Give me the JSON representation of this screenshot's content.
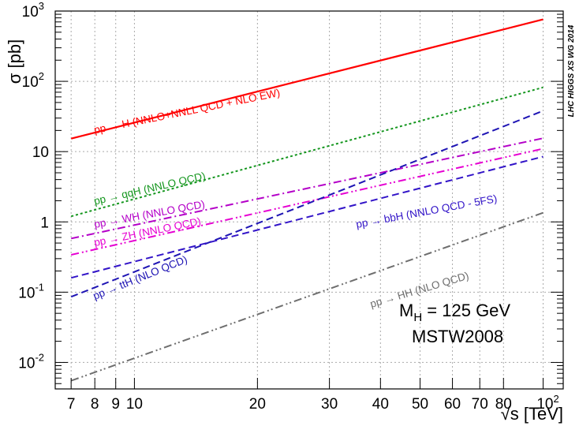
{
  "chart_data": {
    "type": "line",
    "title": "",
    "xlabel": "√s [TeV]",
    "ylabel": "σ [pb]",
    "xscale": "log",
    "yscale": "log",
    "xlim": [
      6.4,
      112
    ],
    "ylim": [
      0.0042,
      1000
    ],
    "x_ticks": [
      {
        "value": 7,
        "label": "7"
      },
      {
        "value": 8,
        "label": "8"
      },
      {
        "value": 9,
        "label": "9"
      },
      {
        "value": 10,
        "label": "10"
      },
      {
        "value": 20,
        "label": "20"
      },
      {
        "value": 30,
        "label": "30"
      },
      {
        "value": 40,
        "label": "40"
      },
      {
        "value": 50,
        "label": "50"
      },
      {
        "value": 60,
        "label": "60"
      },
      {
        "value": 70,
        "label": "70"
      },
      {
        "value": 80,
        "label": "80"
      },
      {
        "value": 100,
        "label": "10",
        "sup": "2"
      }
    ],
    "y_ticks": [
      {
        "value": 0.01,
        "label": "10",
        "sup": "-2"
      },
      {
        "value": 0.1,
        "label": "10",
        "sup": "-1"
      },
      {
        "value": 1,
        "label": "1",
        "sup": ""
      },
      {
        "value": 10,
        "label": "10",
        "sup": ""
      },
      {
        "value": 100,
        "label": "10",
        "sup": "2"
      },
      {
        "value": 1000,
        "label": "10",
        "sup": "3"
      }
    ],
    "series": [
      {
        "name": "pp → H (NNLO+NNLL QCD + NLO EW)",
        "color": "#ff0000",
        "style": "solid",
        "x": [
          7,
          100
        ],
        "y": [
          15.3,
          760
        ],
        "label_pos": [
          8.0,
          18.0
        ],
        "label_angle": -11.5
      },
      {
        "name": "pp → qqH (NNLO QCD)",
        "color": "#14961e",
        "style": "dotted",
        "x": [
          7,
          100
        ],
        "y": [
          1.2,
          82
        ],
        "label_pos": [
          8.0,
          1.75
        ],
        "label_angle": -13
      },
      {
        "name": "pp → WH (NNLO QCD)",
        "color": "#b400c8",
        "style": "dashdot",
        "x": [
          7,
          100
        ],
        "y": [
          0.58,
          15.5
        ],
        "label_pos": [
          8.0,
          0.82
        ],
        "label_angle": -10.5
      },
      {
        "name": "pp → ZH (NNLO QCD)",
        "color": "#e600d2",
        "style": "dashdotdot",
        "x": [
          7,
          100
        ],
        "y": [
          0.34,
          11
        ],
        "label_pos": [
          8.0,
          0.45
        ],
        "label_angle": -11.5
      },
      {
        "name": "pp → ttH (NLO QCD)",
        "color": "#1e14b4",
        "style": "dashed",
        "x": [
          7,
          100
        ],
        "y": [
          0.086,
          38
        ],
        "label_pos": [
          8.0,
          0.078
        ],
        "label_angle": -22
      },
      {
        "name": "pp → bbH (NNLO QCD - 5FS)",
        "color": "#3214c8",
        "style": "dashed",
        "x": [
          7,
          100
        ],
        "y": [
          0.16,
          8.5
        ],
        "label_pos": [
          35.0,
          0.82
        ],
        "label_angle": -10.5
      },
      {
        "name": "pp → HH (NLO QCD)",
        "color": "#6e6e6e",
        "style": "dashdotdot",
        "x": [
          7,
          100
        ],
        "y": [
          0.0055,
          1.35
        ],
        "label_pos": [
          38.0,
          0.06
        ],
        "label_angle": -16.5
      }
    ],
    "annotations": [
      {
        "text": "M",
        "sub": "H",
        "rest": " = 125 GeV"
      },
      {
        "text": "MSTW2008"
      },
      {
        "text": "LHC HIGGS XS WG 2014"
      }
    ],
    "grid": true
  }
}
